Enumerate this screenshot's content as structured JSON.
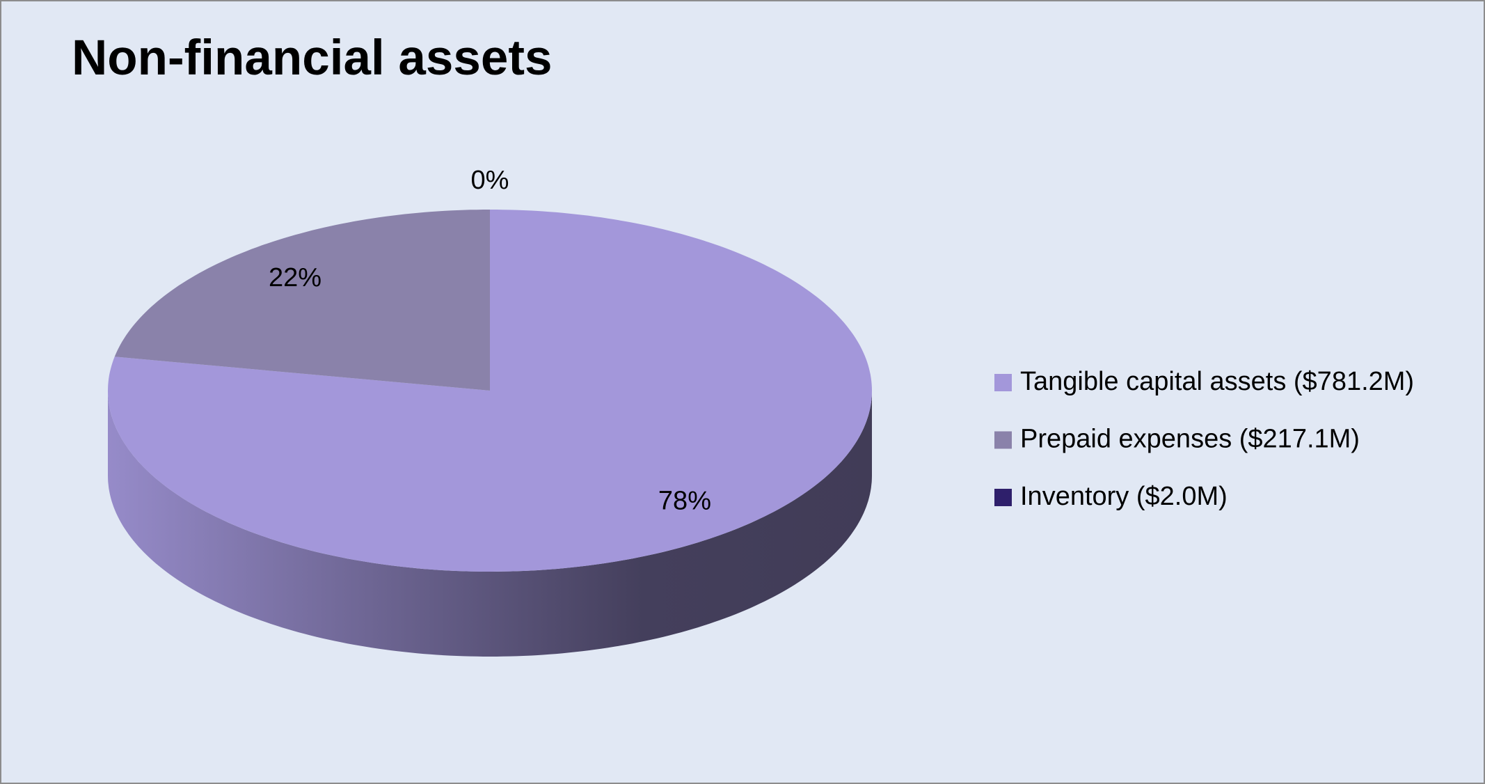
{
  "chart_data": {
    "type": "pie3d",
    "title": "Non-financial assets",
    "categories": [
      "Tangible capital assets ($781.2M)",
      "Prepaid expenses ($217.1M)",
      "Inventory ($2.0M)"
    ],
    "values": [
      78,
      22,
      0
    ],
    "value_labels": [
      "78%",
      "22%",
      "0%"
    ],
    "colors": [
      "#a397da",
      "#8a82aa",
      "#2e1f6b"
    ],
    "legend": "right"
  }
}
